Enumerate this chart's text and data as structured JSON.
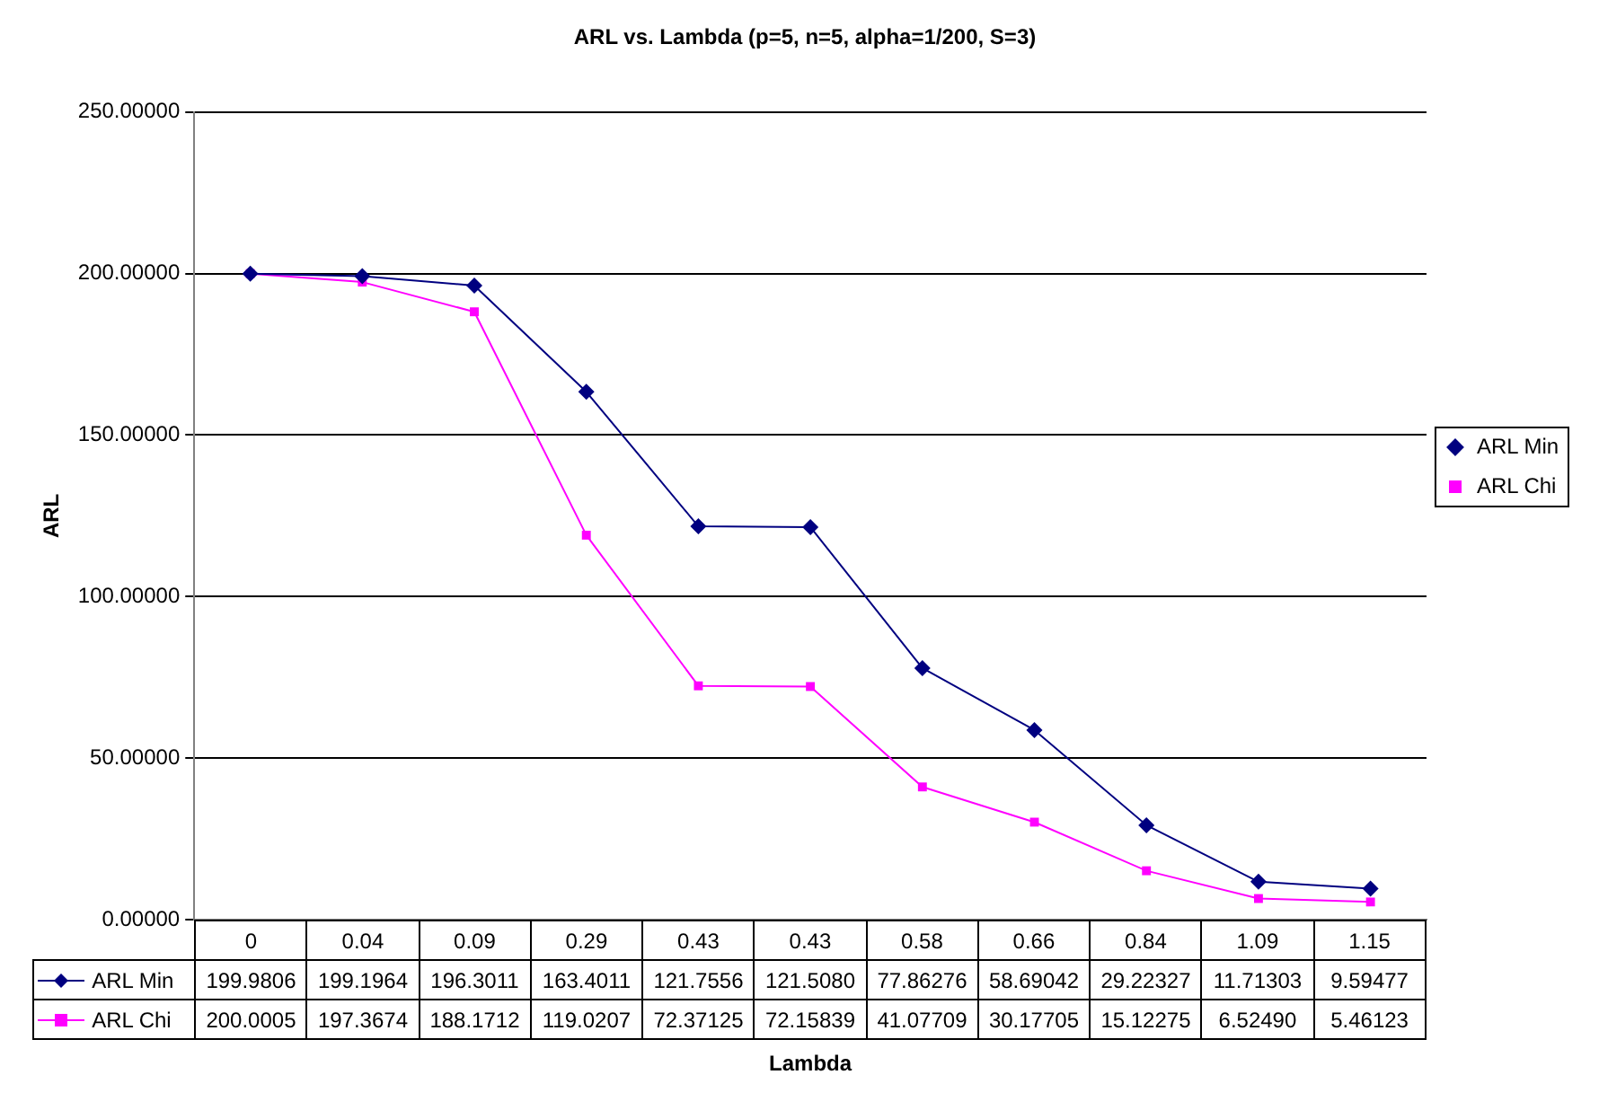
{
  "chart_data": {
    "type": "line",
    "title": "ARL vs. Lambda (p=5, n=5, alpha=1/200, S=3)",
    "xlabel": "Lambda",
    "ylabel": "ARL",
    "categories": [
      "0",
      "0.04",
      "0.09",
      "0.29",
      "0.43",
      "0.43",
      "0.58",
      "0.66",
      "0.84",
      "1.09",
      "1.15"
    ],
    "series": [
      {
        "name": "ARL Min",
        "color": "#000080",
        "marker": "diamond",
        "values": [
          199.9806,
          199.1964,
          196.3011,
          163.4011,
          121.7556,
          121.508,
          77.86276,
          58.69042,
          29.22327,
          11.71303,
          9.59477
        ],
        "value_labels": [
          "199.9806",
          "199.1964",
          "196.3011",
          "163.4011",
          "121.7556",
          "121.5080",
          "77.86276",
          "58.69042",
          "29.22327",
          "11.71303",
          "9.59477"
        ]
      },
      {
        "name": "ARL Chi",
        "color": "#ff00ff",
        "marker": "square",
        "values": [
          200.0005,
          197.3674,
          188.1712,
          119.0207,
          72.37125,
          72.15839,
          41.07709,
          30.17705,
          15.12275,
          6.5249,
          5.46123
        ],
        "value_labels": [
          "200.0005",
          "197.3674",
          "188.1712",
          "119.0207",
          "72.37125",
          "72.15839",
          "41.07709",
          "30.17705",
          "15.12275",
          "6.52490",
          "5.46123"
        ]
      }
    ],
    "ylim": [
      0,
      250
    ],
    "yticks": [
      {
        "value": 0,
        "label": "0.00000"
      },
      {
        "value": 50,
        "label": "50.00000"
      },
      {
        "value": 100,
        "label": "100.00000"
      },
      {
        "value": 150,
        "label": "150.00000"
      },
      {
        "value": 200,
        "label": "200.00000"
      },
      {
        "value": 250,
        "label": "250.00000"
      }
    ],
    "grid": "y",
    "legend": "right",
    "line_style": "solid"
  }
}
